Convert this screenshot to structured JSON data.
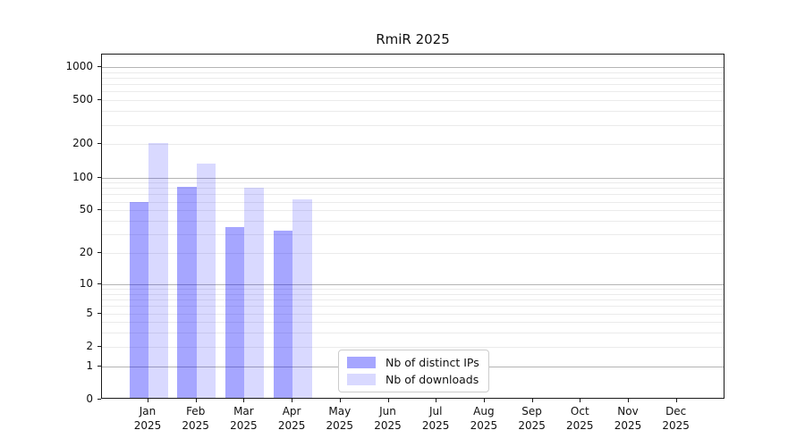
{
  "chart_data": {
    "type": "bar",
    "title": "RmiR 2025",
    "year_label": "2025",
    "months": [
      "Jan",
      "Feb",
      "Mar",
      "Apr",
      "May",
      "Jun",
      "Jul",
      "Aug",
      "Sep",
      "Oct",
      "Nov",
      "Dec"
    ],
    "series": [
      {
        "name": "Nb of distinct IPs",
        "color": "rgba(0,0,255,0.35)",
        "values": [
          57,
          79,
          34,
          31,
          null,
          null,
          null,
          null,
          null,
          null,
          null,
          null
        ]
      },
      {
        "name": "Nb of downloads",
        "color": "rgba(0,0,255,0.15)",
        "values": [
          197,
          130,
          77,
          61,
          null,
          null,
          null,
          null,
          null,
          null,
          null,
          null
        ]
      }
    ],
    "xlabel": "",
    "ylabel": "",
    "yscale": "log1p",
    "ylim": [
      0,
      1296
    ],
    "yticks": [
      1000,
      500,
      200,
      100,
      50,
      20,
      10,
      5,
      2,
      1,
      0
    ],
    "major_gridlines": [
      1,
      10,
      100,
      1000
    ],
    "minor_gridlines": [
      2,
      3,
      4,
      5,
      6,
      7,
      8,
      9,
      20,
      30,
      40,
      50,
      60,
      70,
      80,
      90,
      200,
      300,
      400,
      500,
      600,
      700,
      800,
      900
    ],
    "grid": true,
    "legend": {
      "position": "lower center"
    },
    "colors": {
      "axis": "#1a1a1a",
      "major_grid": "#b4b4b4",
      "minor_grid": "#ebebeb",
      "bar_base": "#0000ff"
    }
  }
}
